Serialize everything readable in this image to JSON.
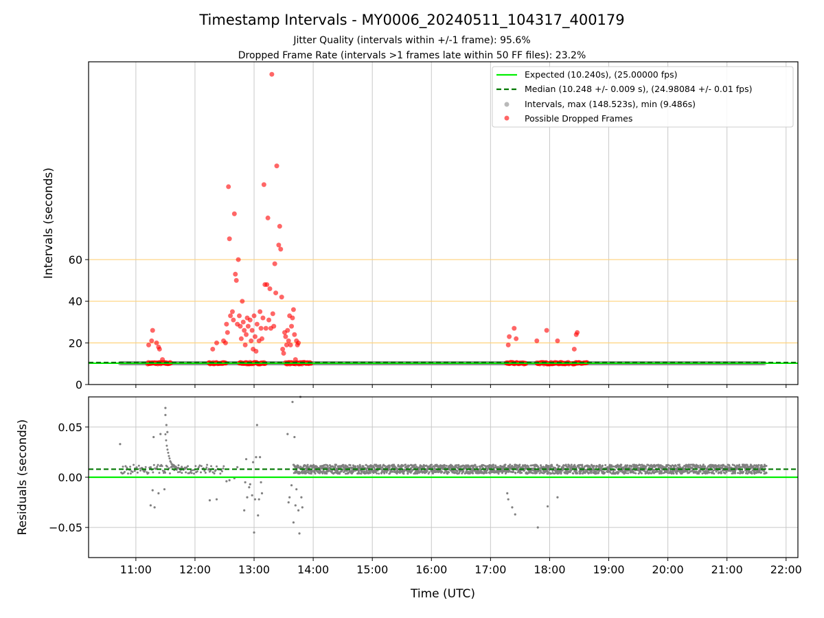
{
  "chart_data": {
    "type": "scatter",
    "title": "Timestamp Intervals - MY0006_20240511_104317_400179",
    "subtitle_lines": [
      "Jitter Quality (intervals within +/-1 frame): 95.6%",
      "Dropped Frame Rate (intervals >1 frames late within 50 FF files): 23.2%"
    ],
    "xlabel": "Time (UTC)",
    "x_ticks": [
      "11:00",
      "12:00",
      "13:00",
      "14:00",
      "15:00",
      "16:00",
      "17:00",
      "18:00",
      "19:00",
      "20:00",
      "21:00",
      "22:00"
    ],
    "xlim": [
      "10:12",
      "22:12"
    ],
    "top_panel": {
      "ylabel": "Intervals (seconds)",
      "ylim": [
        0,
        155
      ],
      "y_ticks": [
        "0",
        "20",
        "40",
        "60"
      ],
      "y_tick_values": [
        0,
        20,
        40,
        60
      ],
      "reference_lines": [
        20,
        40,
        60
      ],
      "expected_value": 10.24,
      "median_value": 10.248,
      "intervals_range": [
        "10:44",
        "21:39"
      ],
      "baseline_dropped_segments": [
        [
          "11:12",
          "11:36"
        ],
        [
          "12:14",
          "12:32"
        ],
        [
          "12:45",
          "13:12"
        ],
        [
          "13:32",
          "13:58"
        ],
        [
          "17:16",
          "17:36"
        ],
        [
          "17:47",
          "18:20"
        ],
        [
          "18:23",
          "18:38"
        ]
      ],
      "dropped_frames": [
        {
          "t": "11:13",
          "v": 19
        },
        {
          "t": "11:16",
          "v": 21
        },
        {
          "t": "11:17",
          "v": 26
        },
        {
          "t": "11:21",
          "v": 20
        },
        {
          "t": "11:23",
          "v": 18
        },
        {
          "t": "11:24",
          "v": 17
        },
        {
          "t": "11:27",
          "v": 12
        },
        {
          "t": "12:18",
          "v": 17
        },
        {
          "t": "12:22",
          "v": 20
        },
        {
          "t": "12:29",
          "v": 21
        },
        {
          "t": "12:31",
          "v": 20
        },
        {
          "t": "12:32",
          "v": 29
        },
        {
          "t": "12:33",
          "v": 25
        },
        {
          "t": "12:34",
          "v": 95
        },
        {
          "t": "12:35",
          "v": 70
        },
        {
          "t": "12:36",
          "v": 33
        },
        {
          "t": "12:38",
          "v": 35
        },
        {
          "t": "12:39",
          "v": 31
        },
        {
          "t": "12:40",
          "v": 82
        },
        {
          "t": "12:41",
          "v": 53
        },
        {
          "t": "12:42",
          "v": 50
        },
        {
          "t": "12:43",
          "v": 29
        },
        {
          "t": "12:44",
          "v": 60
        },
        {
          "t": "12:45",
          "v": 33
        },
        {
          "t": "12:46",
          "v": 28
        },
        {
          "t": "12:47",
          "v": 22
        },
        {
          "t": "12:48",
          "v": 40
        },
        {
          "t": "12:49",
          "v": 30
        },
        {
          "t": "12:50",
          "v": 26
        },
        {
          "t": "12:51",
          "v": 19
        },
        {
          "t": "12:52",
          "v": 24
        },
        {
          "t": "12:53",
          "v": 32
        },
        {
          "t": "12:54",
          "v": 28
        },
        {
          "t": "12:56",
          "v": 31
        },
        {
          "t": "12:57",
          "v": 21
        },
        {
          "t": "12:58",
          "v": 26
        },
        {
          "t": "12:59",
          "v": 17
        },
        {
          "t": "13:00",
          "v": 33
        },
        {
          "t": "13:01",
          "v": 23
        },
        {
          "t": "13:02",
          "v": 16
        },
        {
          "t": "13:03",
          "v": 29
        },
        {
          "t": "13:05",
          "v": 21
        },
        {
          "t": "13:06",
          "v": 35
        },
        {
          "t": "13:07",
          "v": 27
        },
        {
          "t": "13:08",
          "v": 22
        },
        {
          "t": "13:09",
          "v": 32
        },
        {
          "t": "13:10",
          "v": 96
        },
        {
          "t": "13:11",
          "v": 48
        },
        {
          "t": "13:12",
          "v": 27
        },
        {
          "t": "13:13",
          "v": 48
        },
        {
          "t": "13:14",
          "v": 80
        },
        {
          "t": "13:15",
          "v": 31
        },
        {
          "t": "13:16",
          "v": 46
        },
        {
          "t": "13:17",
          "v": 27
        },
        {
          "t": "13:18",
          "v": 149
        },
        {
          "t": "13:19",
          "v": 34
        },
        {
          "t": "13:20",
          "v": 28
        },
        {
          "t": "13:21",
          "v": 58
        },
        {
          "t": "13:22",
          "v": 44
        },
        {
          "t": "13:23",
          "v": 105
        },
        {
          "t": "13:25",
          "v": 67
        },
        {
          "t": "13:26",
          "v": 76
        },
        {
          "t": "13:27",
          "v": 65
        },
        {
          "t": "13:28",
          "v": 42
        },
        {
          "t": "13:29",
          "v": 17
        },
        {
          "t": "13:30",
          "v": 15
        },
        {
          "t": "13:31",
          "v": 25
        },
        {
          "t": "13:32",
          "v": 23
        },
        {
          "t": "13:33",
          "v": 19
        },
        {
          "t": "13:34",
          "v": 26
        },
        {
          "t": "13:35",
          "v": 21
        },
        {
          "t": "13:36",
          "v": 33
        },
        {
          "t": "13:37",
          "v": 19
        },
        {
          "t": "13:38",
          "v": 28
        },
        {
          "t": "13:39",
          "v": 32
        },
        {
          "t": "13:40",
          "v": 36
        },
        {
          "t": "13:41",
          "v": 24
        },
        {
          "t": "13:42",
          "v": 12
        },
        {
          "t": "13:43",
          "v": 21
        },
        {
          "t": "13:44",
          "v": 19
        },
        {
          "t": "13:45",
          "v": 20
        },
        {
          "t": "17:18",
          "v": 19
        },
        {
          "t": "17:19",
          "v": 23
        },
        {
          "t": "17:24",
          "v": 27
        },
        {
          "t": "17:26",
          "v": 22
        },
        {
          "t": "17:47",
          "v": 21
        },
        {
          "t": "17:57",
          "v": 26
        },
        {
          "t": "18:08",
          "v": 21
        },
        {
          "t": "18:25",
          "v": 17
        },
        {
          "t": "18:27",
          "v": 24
        },
        {
          "t": "18:28",
          "v": 25
        }
      ],
      "legend": {
        "placement": "top-right",
        "entries": [
          {
            "label": "Expected (10.240s), (25.00000 fps)",
            "style": "line"
          },
          {
            "label": "Median (10.248 +/- 0.009 s), (24.98084 +/- 0.01 fps)",
            "style": "dashed"
          },
          {
            "label": "Intervals, max (148.523s), min (9.486s)",
            "style": "marker-gray"
          },
          {
            "label": "Possible Dropped Frames",
            "style": "marker-red"
          }
        ]
      }
    },
    "bottom_panel": {
      "ylabel": "Residuals (seconds)",
      "ylim": [
        -0.08,
        0.08
      ],
      "y_ticks": [
        "0.05",
        "0.00",
        "−0.05"
      ],
      "y_tick_values": [
        0.05,
        0,
        -0.05
      ],
      "expected_residual": 0,
      "median_residual": 0.008,
      "dense_band_ranges": [
        [
          "13:40",
          "21:40"
        ],
        [
          "10:45",
          "12:30"
        ]
      ],
      "outliers": [
        {
          "t": "10:44",
          "v": 0.033
        },
        {
          "t": "11:15",
          "v": -0.028
        },
        {
          "t": "11:17",
          "v": -0.013
        },
        {
          "t": "11:18",
          "v": 0.04
        },
        {
          "t": "11:19",
          "v": -0.03
        },
        {
          "t": "11:23",
          "v": -0.016
        },
        {
          "t": "11:25",
          "v": 0.043
        },
        {
          "t": "11:29",
          "v": -0.012
        },
        {
          "t": "11:30",
          "v": 0.069
        },
        {
          "t": "11:30",
          "v": 0.062
        },
        {
          "t": "11:31",
          "v": 0.052
        },
        {
          "t": "11:32",
          "v": 0.045
        },
        {
          "t": "12:15",
          "v": -0.023
        },
        {
          "t": "12:22",
          "v": -0.022
        },
        {
          "t": "12:32",
          "v": -0.004
        },
        {
          "t": "12:35",
          "v": -0.003
        },
        {
          "t": "12:40",
          "v": -0.001
        },
        {
          "t": "12:43",
          "v": 0.01
        },
        {
          "t": "12:50",
          "v": -0.033
        },
        {
          "t": "12:51",
          "v": -0.005
        },
        {
          "t": "12:52",
          "v": 0.018
        },
        {
          "t": "12:53",
          "v": -0.02
        },
        {
          "t": "12:55",
          "v": -0.01
        },
        {
          "t": "12:56",
          "v": -0.007
        },
        {
          "t": "12:58",
          "v": -0.018
        },
        {
          "t": "12:59",
          "v": 0.015
        },
        {
          "t": "13:00",
          "v": -0.055
        },
        {
          "t": "13:01",
          "v": -0.022
        },
        {
          "t": "13:02",
          "v": 0.02
        },
        {
          "t": "13:03",
          "v": 0.052
        },
        {
          "t": "13:04",
          "v": -0.038
        },
        {
          "t": "13:05",
          "v": -0.022
        },
        {
          "t": "13:06",
          "v": 0.02
        },
        {
          "t": "13:07",
          "v": -0.005
        },
        {
          "t": "13:08",
          "v": -0.016
        },
        {
          "t": "13:34",
          "v": 0.043
        },
        {
          "t": "13:35",
          "v": -0.025
        },
        {
          "t": "13:36",
          "v": -0.02
        },
        {
          "t": "13:38",
          "v": -0.008
        },
        {
          "t": "13:39",
          "v": 0.075
        },
        {
          "t": "13:40",
          "v": -0.045
        },
        {
          "t": "13:41",
          "v": 0.04
        },
        {
          "t": "13:42",
          "v": -0.028
        },
        {
          "t": "13:43",
          "v": -0.012
        },
        {
          "t": "13:45",
          "v": -0.033
        },
        {
          "t": "13:46",
          "v": -0.056
        },
        {
          "t": "13:47",
          "v": 0.08
        },
        {
          "t": "13:48",
          "v": -0.02
        },
        {
          "t": "13:49",
          "v": -0.03
        },
        {
          "t": "17:17",
          "v": -0.016
        },
        {
          "t": "17:18",
          "v": -0.022
        },
        {
          "t": "17:22",
          "v": -0.03
        },
        {
          "t": "17:25",
          "v": -0.037
        },
        {
          "t": "17:48",
          "v": -0.05
        },
        {
          "t": "17:58",
          "v": -0.029
        },
        {
          "t": "18:08",
          "v": -0.02
        }
      ]
    },
    "colors": {
      "expected": "#00ee00",
      "median": "#007700",
      "intervals": "#808080",
      "dropped": "#ff0000",
      "reference": "#ffd27a",
      "grid": "#c8c8c8"
    },
    "grid": true
  }
}
